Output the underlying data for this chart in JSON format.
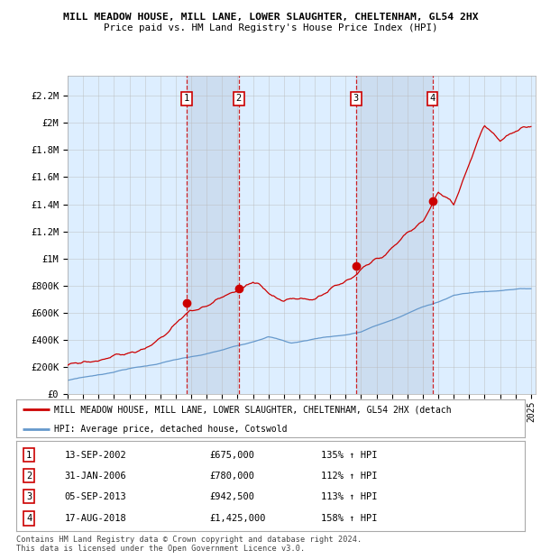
{
  "title1": "MILL MEADOW HOUSE, MILL LANE, LOWER SLAUGHTER, CHELTENHAM, GL54 2HX",
  "title2": "Price paid vs. HM Land Registry's House Price Index (HPI)",
  "ylabel_ticks": [
    "£0",
    "£200K",
    "£400K",
    "£600K",
    "£800K",
    "£1M",
    "£1.2M",
    "£1.4M",
    "£1.6M",
    "£1.8M",
    "£2M",
    "£2.2M"
  ],
  "ytick_values": [
    0,
    200000,
    400000,
    600000,
    800000,
    1000000,
    1200000,
    1400000,
    1600000,
    1800000,
    2000000,
    2200000
  ],
  "ylim": [
    0,
    2350000
  ],
  "xlim_start": 1995.0,
  "xlim_end": 2025.3,
  "sale_dates": [
    2002.71,
    2006.08,
    2013.67,
    2018.62
  ],
  "sale_prices": [
    675000,
    780000,
    942500,
    1425000
  ],
  "sale_labels": [
    "1",
    "2",
    "3",
    "4"
  ],
  "sale_info": [
    {
      "label": "1",
      "date": "13-SEP-2002",
      "price": "£675,000",
      "pct": "135% ↑ HPI"
    },
    {
      "label": "2",
      "date": "31-JAN-2006",
      "price": "£780,000",
      "pct": "112% ↑ HPI"
    },
    {
      "label": "3",
      "date": "05-SEP-2013",
      "price": "£942,500",
      "pct": "113% ↑ HPI"
    },
    {
      "label": "4",
      "date": "17-AUG-2018",
      "price": "£1,425,000",
      "pct": "158% ↑ HPI"
    }
  ],
  "legend_line1": "MILL MEADOW HOUSE, MILL LANE, LOWER SLAUGHTER, CHELTENHAM, GL54 2HX (detach",
  "legend_line2": "HPI: Average price, detached house, Cotswold",
  "footer1": "Contains HM Land Registry data © Crown copyright and database right 2024.",
  "footer2": "This data is licensed under the Open Government Licence v3.0.",
  "red_color": "#cc0000",
  "blue_color": "#6699cc",
  "bg_color": "#ddeeff",
  "panel_color": "#ccddf0",
  "grid_color": "#bbbbbb"
}
